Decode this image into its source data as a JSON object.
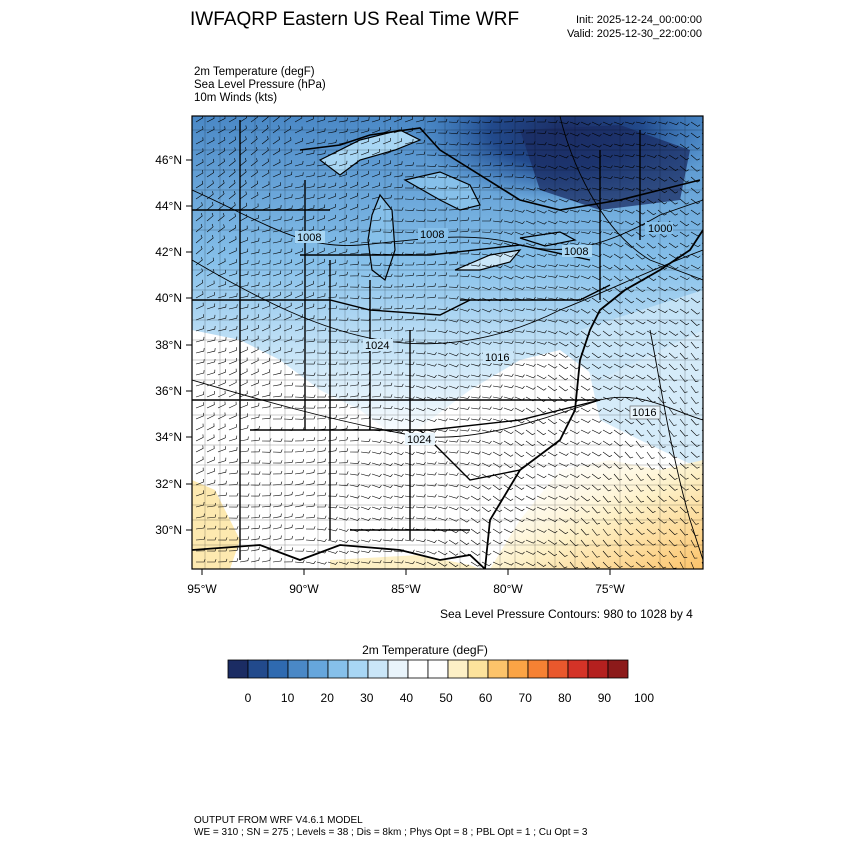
{
  "header": {
    "title": "IWFAQRP Eastern US Real Time WRF",
    "init": "Init: 2025-12-24_00:00:00",
    "valid": "Valid: 2025-12-30_22:00:00"
  },
  "fields": {
    "line1": "2m Temperature   (degF)",
    "line2": "Sea Level Pressure   (hPa)",
    "line3": "10m Winds   (kts)"
  },
  "map": {
    "lat_ticks": [
      "46°N",
      "44°N",
      "42°N",
      "40°N",
      "38°N",
      "36°N",
      "34°N",
      "32°N",
      "30°N"
    ],
    "lon_ticks": [
      "95°W",
      "90°W",
      "85°W",
      "80°W",
      "75°W"
    ],
    "isobar_labels": [
      "1008",
      "1008",
      "1008",
      "1000",
      "1024",
      "1016",
      "1024",
      "1016"
    ]
  },
  "contour_note": "Sea Level Pressure Contours: 980 to 1028 by 4",
  "colorbar": {
    "title": "2m Temperature  (degF)",
    "labels": [
      "0",
      "10",
      "20",
      "30",
      "40",
      "50",
      "60",
      "70",
      "80",
      "90",
      "100"
    ],
    "colors": [
      "#1b2c63",
      "#224a8c",
      "#2f6ab0",
      "#4a88c6",
      "#66a6dc",
      "#86c0ea",
      "#a8d6f4",
      "#cae6f8",
      "#e9f4fb",
      "#ffffff",
      "#fefefe",
      "#fdf0c6",
      "#fde39c",
      "#fcc36a",
      "#fba445",
      "#f68133",
      "#e9582d",
      "#d43327",
      "#b4201f",
      "#8c1a1a"
    ]
  },
  "footer": {
    "line1": "OUTPUT FROM WRF V4.6.1 MODEL",
    "line2": "WE = 310 ; SN = 275 ; Levels = 38 ; Dis = 8km ; Phys Opt = 8 ; PBL Opt = 1 ; Cu Opt = 3"
  }
}
